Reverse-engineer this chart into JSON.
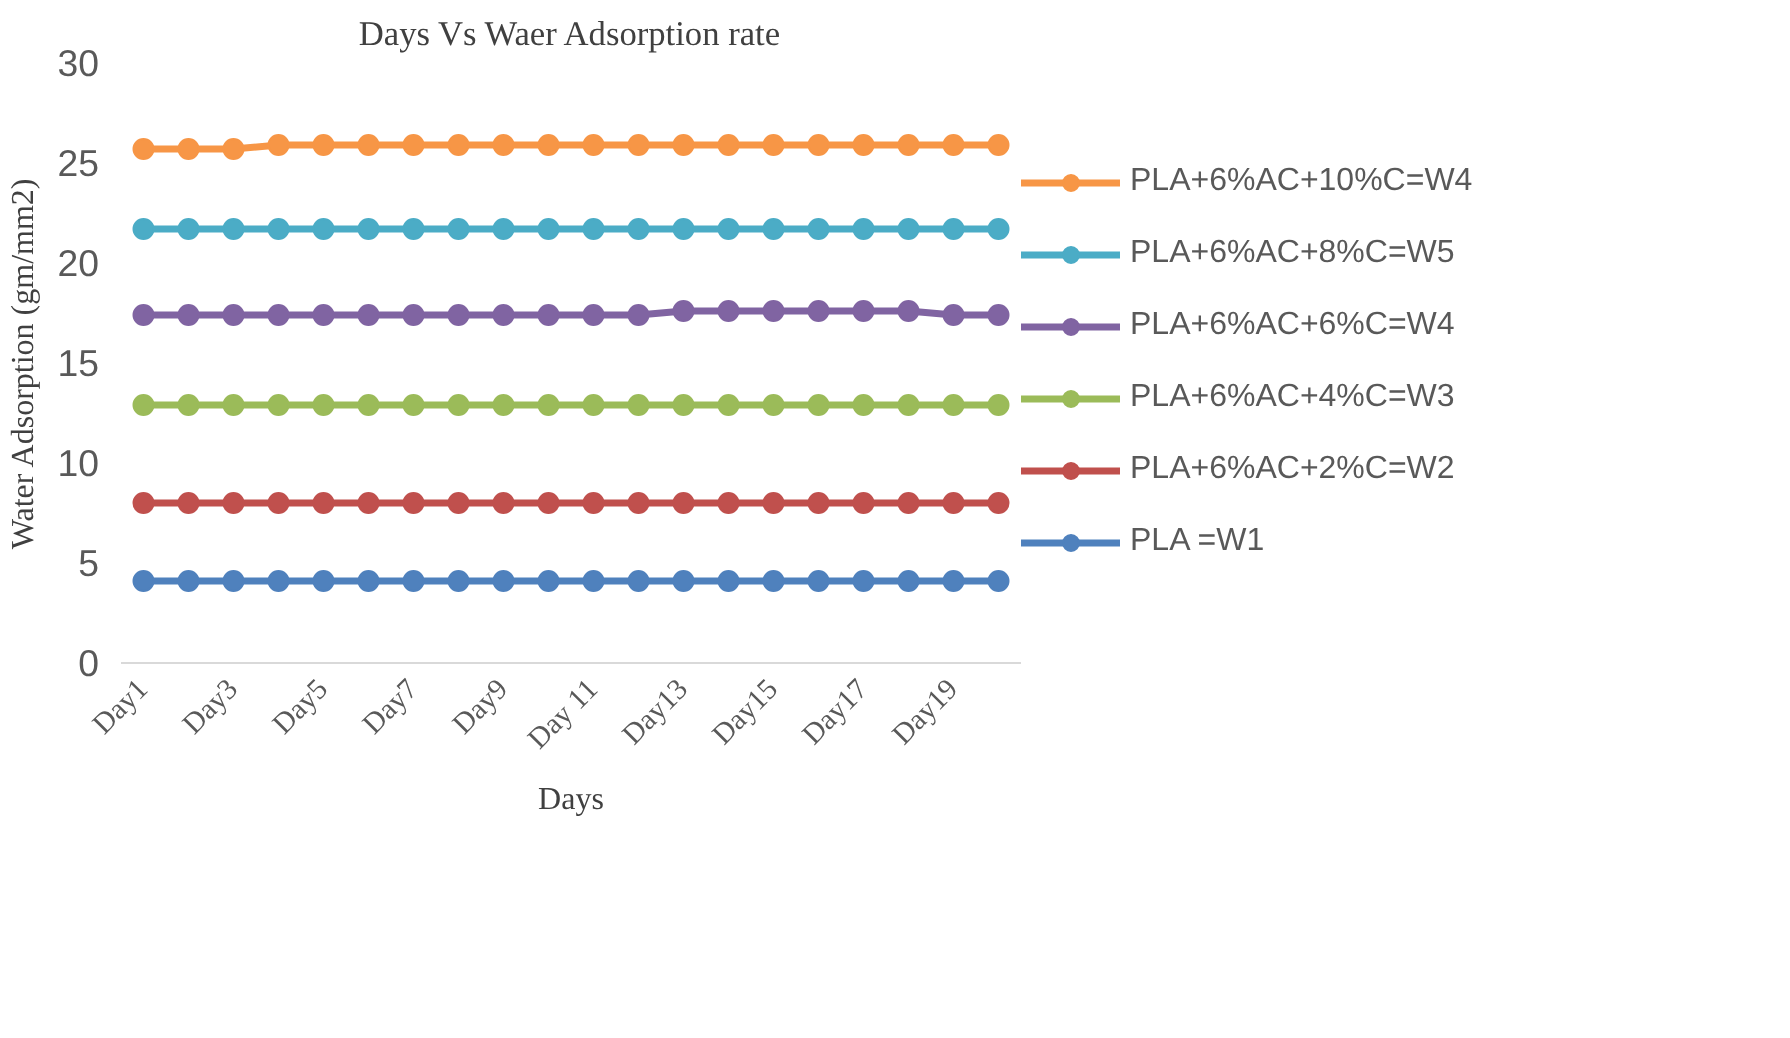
{
  "chart_data": {
    "type": "line",
    "title": "Days Vs Waer Adsorption rate",
    "xlabel": "Days",
    "ylabel": "Water Adsorption (gm/mm2)",
    "categories": [
      "Day1",
      null,
      "Day3",
      null,
      "Day5",
      null,
      "Day7",
      null,
      "Day9",
      null,
      "Day 11",
      null,
      "Day13",
      null,
      "Day15",
      null,
      "Day17",
      null,
      "Day19",
      null
    ],
    "series": [
      {
        "name": "PLA+6%AC+10%C=W4",
        "color": "#f79646",
        "values": [
          25.7,
          25.7,
          25.7,
          25.9,
          25.9,
          25.9,
          25.9,
          25.9,
          25.9,
          25.9,
          25.9,
          25.9,
          25.9,
          25.9,
          25.9,
          25.9,
          25.9,
          25.9,
          25.9,
          25.9
        ]
      },
      {
        "name": "PLA+6%AC+8%C=W5",
        "color": "#4bacc6",
        "values": [
          21.7,
          21.7,
          21.7,
          21.7,
          21.7,
          21.7,
          21.7,
          21.7,
          21.7,
          21.7,
          21.7,
          21.7,
          21.7,
          21.7,
          21.7,
          21.7,
          21.7,
          21.7,
          21.7,
          21.7
        ]
      },
      {
        "name": "PLA+6%AC+6%C=W4",
        "color": "#8064a2",
        "values": [
          17.4,
          17.4,
          17.4,
          17.4,
          17.4,
          17.4,
          17.4,
          17.4,
          17.4,
          17.4,
          17.4,
          17.4,
          17.6,
          17.6,
          17.6,
          17.6,
          17.6,
          17.6,
          17.4,
          17.4
        ]
      },
      {
        "name": "PLA+6%AC+4%C=W3",
        "color": "#9bbb59",
        "values": [
          12.9,
          12.9,
          12.9,
          12.9,
          12.9,
          12.9,
          12.9,
          12.9,
          12.9,
          12.9,
          12.9,
          12.9,
          12.9,
          12.9,
          12.9,
          12.9,
          12.9,
          12.9,
          12.9,
          12.9
        ]
      },
      {
        "name": "PLA+6%AC+2%C=W2",
        "color": "#c0504d",
        "values": [
          8.0,
          8.0,
          8.0,
          8.0,
          8.0,
          8.0,
          8.0,
          8.0,
          8.0,
          8.0,
          8.0,
          8.0,
          8.0,
          8.0,
          8.0,
          8.0,
          8.0,
          8.0,
          8.0,
          8.0
        ]
      },
      {
        "name": "PLA =W1",
        "color": "#4f81bd",
        "values": [
          4.1,
          4.1,
          4.1,
          4.1,
          4.1,
          4.1,
          4.1,
          4.1,
          4.1,
          4.1,
          4.1,
          4.1,
          4.1,
          4.1,
          4.1,
          4.1,
          4.1,
          4.1,
          4.1,
          4.1
        ]
      }
    ],
    "ylim": [
      0,
      30
    ],
    "yticks": [
      0,
      5,
      10,
      15,
      20,
      25,
      30
    ],
    "grid": false,
    "legend": "right",
    "marker": "circle",
    "line_style": "solid"
  }
}
